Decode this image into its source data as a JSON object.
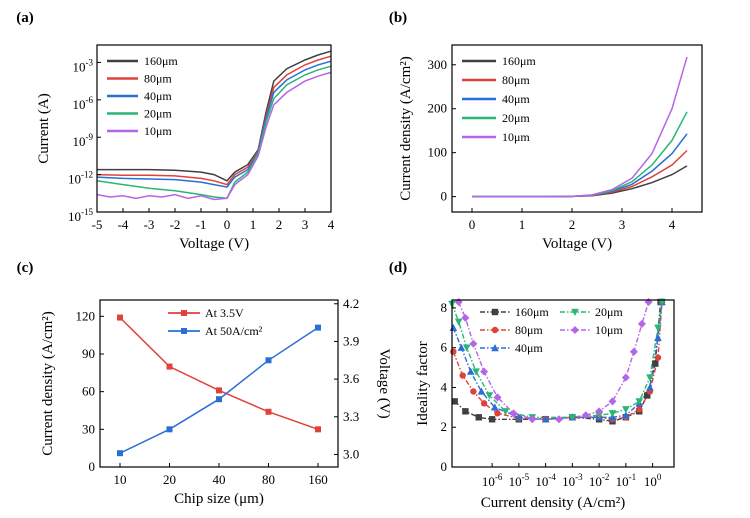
{
  "chart_data": [
    {
      "id": "a",
      "panel_label": "(a)",
      "type": "line",
      "xlabel": "Voltage (V)",
      "ylabel": "Current (A)",
      "xlim": [
        -5,
        4
      ],
      "ylim_log10": [
        -15,
        -1.6
      ],
      "y_scale": "log",
      "x_ticks": [
        "-5",
        "-4",
        "-3",
        "-2",
        "-1",
        "0",
        "1",
        "2",
        "3",
        "4"
      ],
      "y_ticks": [
        {
          "v": -15,
          "base": "10",
          "exp": "-15"
        },
        {
          "v": -12,
          "base": "10",
          "exp": "-12"
        },
        {
          "v": -9,
          "base": "10",
          "exp": "-9"
        },
        {
          "v": -6,
          "base": "10",
          "exp": "-6"
        },
        {
          "v": -3,
          "base": "10",
          "exp": "-3"
        }
      ],
      "legend_position": "top-left",
      "series": [
        {
          "name": "160μm",
          "color": "#404040",
          "x": [
            -5,
            -4,
            -3,
            -2,
            -1,
            -0.5,
            0,
            0.3,
            0.8,
            1.2,
            1.5,
            1.8,
            2.3,
            3,
            3.5,
            4
          ],
          "log10_y": [
            -11.6,
            -11.6,
            -11.6,
            -11.65,
            -11.8,
            -12,
            -12.5,
            -11.8,
            -11.2,
            -10,
            -7,
            -4.5,
            -3.5,
            -2.8,
            -2.4,
            -2.1
          ]
        },
        {
          "name": "80μm",
          "color": "#e0413a",
          "x": [
            -5,
            -4,
            -3,
            -2,
            -1,
            -0.5,
            0,
            0.3,
            0.8,
            1.2,
            1.5,
            1.8,
            2.3,
            3,
            3.5,
            4
          ],
          "log10_y": [
            -12,
            -12.05,
            -12.05,
            -12.1,
            -12.3,
            -12.5,
            -12.8,
            -12,
            -11.4,
            -10.1,
            -7.3,
            -5,
            -4,
            -3.2,
            -2.8,
            -2.5
          ]
        },
        {
          "name": "40μm",
          "color": "#2a6fd6",
          "x": [
            -5,
            -4,
            -3,
            -2,
            -1,
            -0.5,
            0,
            0.3,
            0.8,
            1.2,
            1.5,
            1.8,
            2.3,
            3,
            3.5,
            4
          ],
          "log10_y": [
            -12.2,
            -12.3,
            -12.35,
            -12.4,
            -12.6,
            -12.8,
            -13,
            -12.2,
            -11.6,
            -10.2,
            -7.5,
            -5.4,
            -4.4,
            -3.6,
            -3.2,
            -2.9
          ]
        },
        {
          "name": "20μm",
          "color": "#2bb673",
          "x": [
            -5,
            -4,
            -3,
            -2,
            -1,
            -0.5,
            0,
            0.3,
            0.8,
            1.2,
            1.5,
            1.8,
            2.3,
            3,
            3.5,
            4
          ],
          "log10_y": [
            -12.5,
            -12.8,
            -13.1,
            -13.3,
            -13.6,
            -13.8,
            -13.9,
            -12.6,
            -11.8,
            -10.3,
            -7.8,
            -5.9,
            -4.8,
            -4,
            -3.6,
            -3.3
          ]
        },
        {
          "name": "10μm",
          "color": "#b565e8",
          "x": [
            -5,
            -4.5,
            -4,
            -3.5,
            -3,
            -2.5,
            -2,
            -1.5,
            -1,
            -0.5,
            0,
            0.3,
            0.8,
            1.2,
            1.5,
            1.8,
            2.3,
            3,
            3.5,
            4
          ],
          "log10_y": [
            -13.6,
            -13.8,
            -13.7,
            -13.9,
            -13.7,
            -13.8,
            -13.6,
            -13.9,
            -13.7,
            -14,
            -13.9,
            -12.8,
            -12,
            -10.5,
            -8.2,
            -6.4,
            -5.4,
            -4.5,
            -4.1,
            -3.8
          ]
        }
      ]
    },
    {
      "id": "b",
      "panel_label": "(b)",
      "type": "line",
      "xlabel": "Voltage (V)",
      "ylabel": "Current density (A/cm²)",
      "xlim": [
        -0.4,
        4.6
      ],
      "ylim": [
        -35,
        345
      ],
      "x_ticks": [
        0,
        1,
        2,
        3,
        4
      ],
      "y_ticks": [
        0,
        100,
        200,
        300
      ],
      "legend_position": "top-left",
      "series": [
        {
          "name": "160μm",
          "color": "#404040",
          "x": [
            0,
            1,
            1.5,
            2,
            2.4,
            2.8,
            3.2,
            3.6,
            4,
            4.3
          ],
          "y": [
            0,
            0,
            0,
            0.5,
            2,
            8,
            18,
            32,
            50,
            70
          ]
        },
        {
          "name": "80μm",
          "color": "#e0413a",
          "x": [
            0,
            1,
            1.5,
            2,
            2.4,
            2.8,
            3.2,
            3.6,
            4,
            4.3
          ],
          "y": [
            0,
            0,
            0,
            0.5,
            2.5,
            10,
            23,
            45,
            72,
            105
          ]
        },
        {
          "name": "40μm",
          "color": "#2a6fd6",
          "x": [
            0,
            1,
            1.5,
            2,
            2.4,
            2.8,
            3.2,
            3.6,
            4,
            4.3
          ],
          "y": [
            0,
            0,
            0,
            0.5,
            3,
            12,
            28,
            58,
            98,
            143
          ]
        },
        {
          "name": "20μm",
          "color": "#2bb673",
          "x": [
            0,
            1,
            1.5,
            2,
            2.4,
            2.8,
            3.2,
            3.6,
            4,
            4.3
          ],
          "y": [
            0,
            0,
            0,
            0.5,
            3.5,
            14,
            34,
            72,
            128,
            193
          ]
        },
        {
          "name": "10μm",
          "color": "#b565e8",
          "x": [
            0,
            1,
            1.5,
            2,
            2.4,
            2.8,
            3.2,
            3.6,
            4,
            4.3
          ],
          "y": [
            0,
            0,
            0,
            0.5,
            4,
            16,
            42,
            98,
            200,
            318
          ]
        }
      ]
    },
    {
      "id": "c",
      "panel_label": "(c)",
      "type": "line",
      "xlabel": "Chip size (μm)",
      "ylabel": "Current density (A/cm²)",
      "ylabel_right": "Voltage (V)",
      "categories": [
        "10",
        "20",
        "40",
        "80",
        "160"
      ],
      "ylim_left": [
        0,
        133
      ],
      "ylim_right": [
        2.9,
        4.23
      ],
      "y_ticks_left": [
        0,
        30,
        60,
        90,
        120
      ],
      "y_ticks_right": [
        "3.0",
        "3.3",
        "3.6",
        "3.9",
        "4.2"
      ],
      "legend_position": "top-center",
      "series": [
        {
          "name": "At 3.5V",
          "color": "#e0413a",
          "axis": "left",
          "values": [
            119,
            80,
            61,
            44,
            30
          ]
        },
        {
          "name": "At 50A/cm²",
          "color": "#2a6fd6",
          "axis": "right",
          "values": [
            3.01,
            3.2,
            3.44,
            3.75,
            4.01
          ]
        }
      ]
    },
    {
      "id": "d",
      "panel_label": "(d)",
      "type": "line",
      "xlabel": "Current density (A/cm²)",
      "ylabel": "Ideality factor",
      "x_scale": "log",
      "xlim_log10": [
        -7.5,
        0.8
      ],
      "ylim": [
        0,
        8.4
      ],
      "y_ticks": [
        0,
        2,
        4,
        6,
        8
      ],
      "x_ticks": [
        {
          "v": -6,
          "base": "10",
          "exp": "-6"
        },
        {
          "v": -5,
          "base": "10",
          "exp": "-5"
        },
        {
          "v": -4,
          "base": "10",
          "exp": "-4"
        },
        {
          "v": -3,
          "base": "10",
          "exp": "-3"
        },
        {
          "v": -2,
          "base": "10",
          "exp": "-2"
        },
        {
          "v": -1,
          "base": "10",
          "exp": "-1"
        },
        {
          "v": 0,
          "base": "10",
          "exp": "0"
        }
      ],
      "legend_position": "top",
      "series": [
        {
          "name": "160μm",
          "color": "#404040",
          "marker": "square",
          "log10_x": [
            -7.4,
            -7,
            -6.5,
            -6,
            -5,
            -4,
            -3,
            -2,
            -1.5,
            -1,
            -0.5,
            -0.2,
            0.1,
            0.3
          ],
          "y": [
            3.3,
            2.8,
            2.5,
            2.4,
            2.4,
            2.4,
            2.5,
            2.4,
            2.3,
            2.5,
            2.8,
            3.6,
            5.2,
            8.3
          ]
        },
        {
          "name": "80μm",
          "color": "#e0413a",
          "marker": "circle",
          "log10_x": [
            -7.45,
            -7.1,
            -6.7,
            -6.3,
            -5.8,
            -5,
            -4,
            -3,
            -2,
            -1.5,
            -1,
            -0.5,
            -0.1,
            0.2,
            0.35
          ],
          "y": [
            5.8,
            4.6,
            3.8,
            3.2,
            2.7,
            2.45,
            2.4,
            2.5,
            2.5,
            2.4,
            2.5,
            2.9,
            3.8,
            5.5,
            8.3
          ]
        },
        {
          "name": "40μm",
          "color": "#2a6fd6",
          "marker": "triangle-up",
          "log10_x": [
            -7.45,
            -7.15,
            -6.8,
            -6.4,
            -5.9,
            -5,
            -4,
            -3,
            -2,
            -1.5,
            -1,
            -0.5,
            -0.1,
            0.2,
            0.35
          ],
          "y": [
            7,
            6,
            4.8,
            3.8,
            3,
            2.5,
            2.4,
            2.5,
            2.5,
            2.5,
            2.6,
            3.2,
            4,
            6.5,
            8.3
          ]
        },
        {
          "name": "20μm",
          "color": "#2bb673",
          "marker": "triangle-down",
          "log10_x": [
            -7.5,
            -7.25,
            -6.95,
            -6.6,
            -6.1,
            -5.5,
            -4.5,
            -3,
            -2,
            -1.5,
            -1,
            -0.5,
            -0.1,
            0.2,
            0.35
          ],
          "y": [
            8.2,
            7.3,
            6,
            4.8,
            3.6,
            2.8,
            2.5,
            2.5,
            2.6,
            2.7,
            2.9,
            3.3,
            4.5,
            7,
            8.3
          ]
        },
        {
          "name": "10μm",
          "color": "#b565e8",
          "marker": "diamond",
          "log10_x": [
            -7.25,
            -7,
            -6.7,
            -6.3,
            -5.8,
            -5.2,
            -4.5,
            -3.5,
            -2.5,
            -2,
            -1.5,
            -1,
            -0.7,
            -0.4,
            -0.15
          ],
          "y": [
            8.3,
            7.5,
            6.2,
            4.8,
            3.5,
            2.7,
            2.4,
            2.4,
            2.6,
            2.8,
            3.3,
            4.5,
            5.8,
            7.2,
            8.3
          ]
        }
      ]
    }
  ]
}
